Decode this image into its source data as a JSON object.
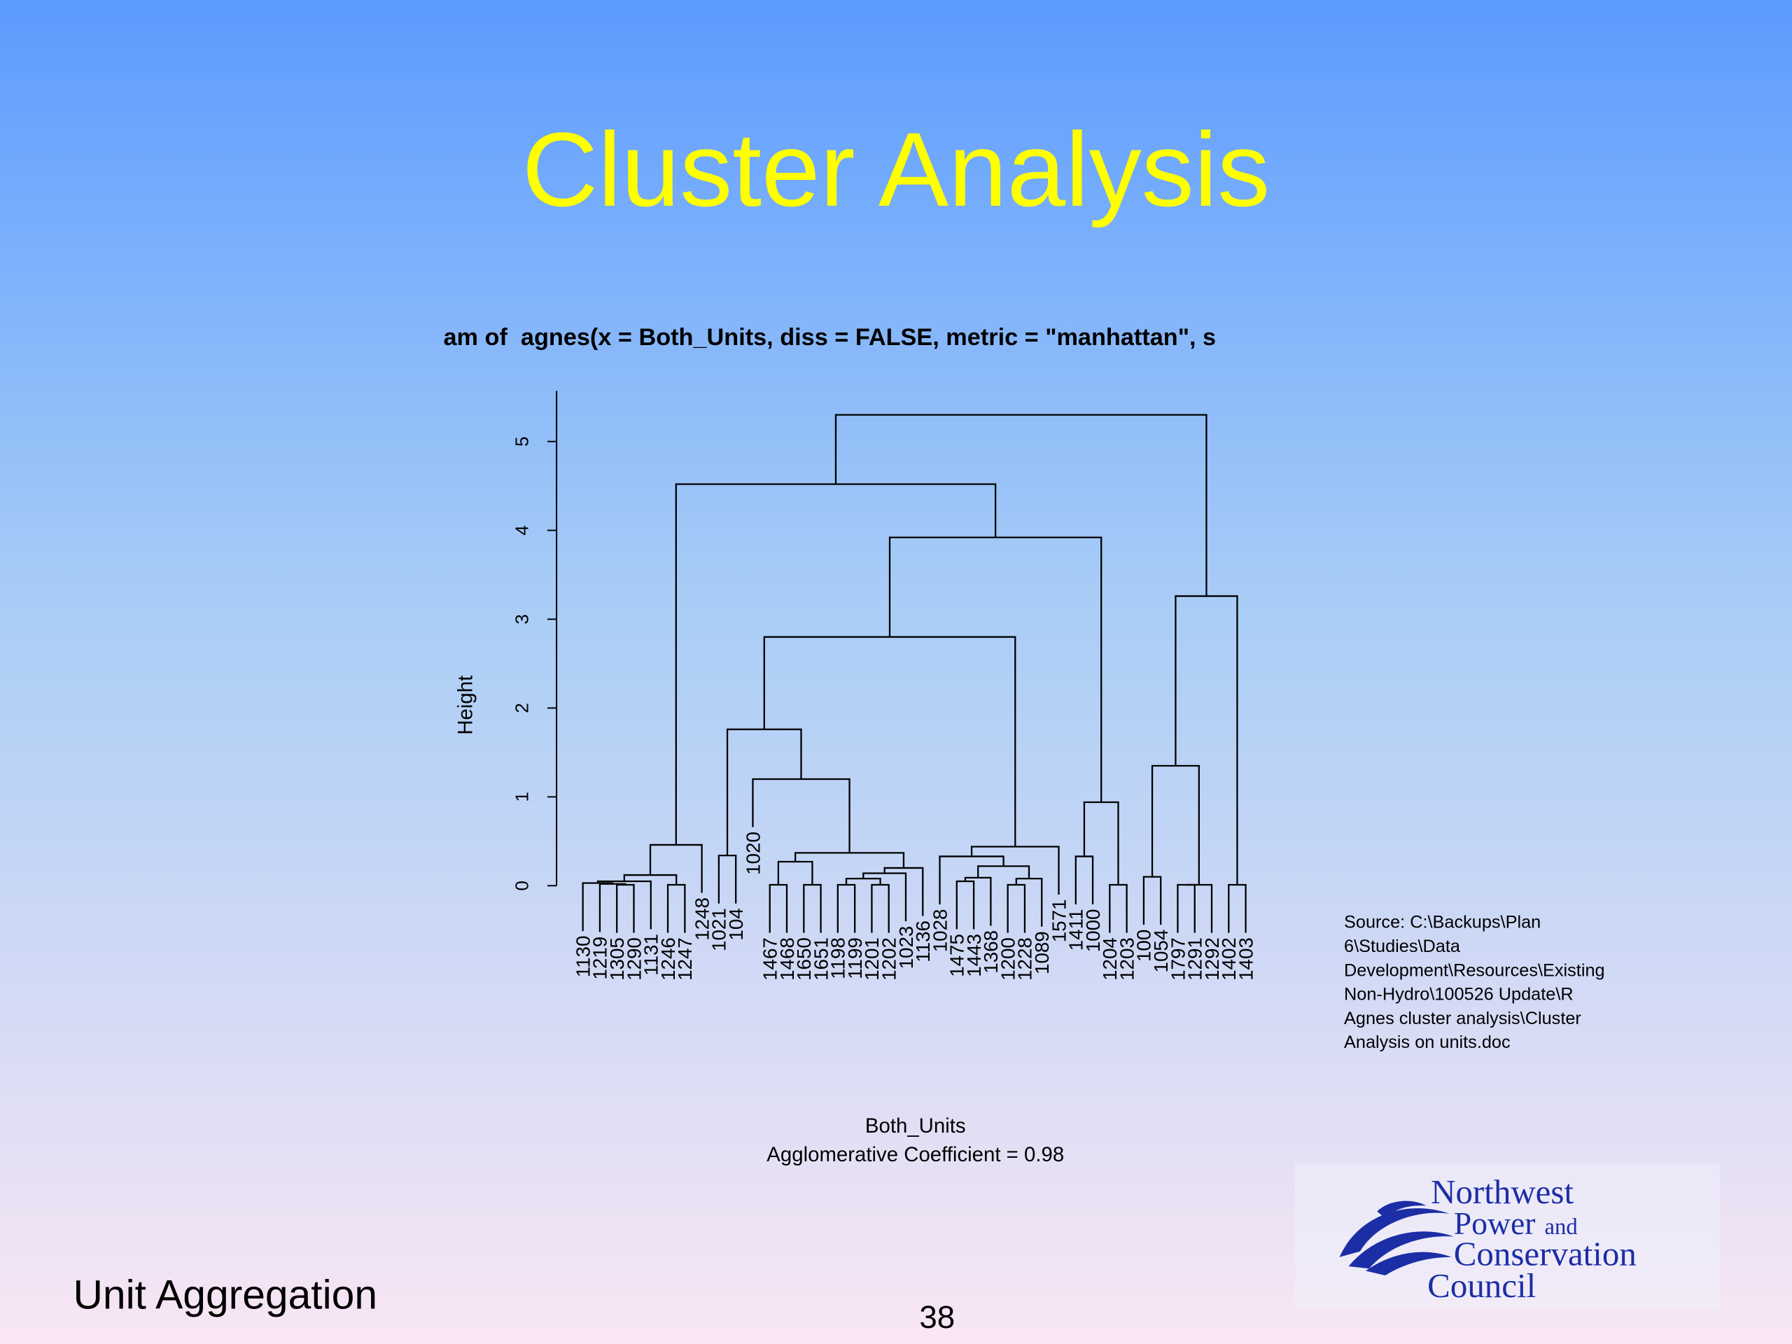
{
  "slide": {
    "title": "Cluster Analysis",
    "source": [
      "Source: C:\\Backups\\Plan",
      "6\\Studies\\Data",
      "Development\\Resources\\Existing",
      "Non-Hydro\\100526 Update\\R",
      "Agnes cluster analysis\\Cluster",
      "Analysis on units.doc"
    ],
    "footer": "Unit Aggregation",
    "page_number": 38,
    "logo": {
      "line1": "Northwest",
      "line2": "Power",
      "line2b": "and",
      "line3": "Conservation",
      "line4": "Council"
    }
  },
  "chart_data": {
    "type": "dendrogram",
    "title": "am of  agnes(x = Both_Units, diss = FALSE, metric = \"manhattan\", s",
    "ylabel": "Height",
    "xlabel": "Both_Units",
    "subtitle": "Agglomerative Coefficient = ",
    "agglomerative_coefficient": 0.98,
    "ylim": [
      0,
      5.57
    ],
    "yticks": [
      0,
      1,
      2,
      3,
      4,
      5
    ],
    "color": "#000000",
    "leaves": [
      "1130",
      "1219",
      "1305",
      "1290",
      "1131",
      "1246",
      "1247",
      "1248",
      "1021",
      "104",
      "1020",
      "1467",
      "1468",
      "1650",
      "1651",
      "1198",
      "1199",
      "1201",
      "1202",
      "1023",
      "1136",
      "1028",
      "1475",
      "1443",
      "1368",
      "1200",
      "1228",
      "1089",
      "1571",
      "1411",
      "1000",
      "1204",
      "1203",
      "100",
      "1054",
      "1797",
      "1291",
      "1292",
      "1402",
      "1403"
    ],
    "merge": [
      [
        -3,
        -4
      ],
      [
        -2,
        1
      ],
      [
        -1,
        2
      ],
      [
        3,
        -5
      ],
      [
        -6,
        -7
      ],
      [
        4,
        5
      ],
      [
        6,
        -8
      ],
      [
        -9,
        -10
      ],
      [
        -12,
        -13
      ],
      [
        -14,
        -15
      ],
      [
        9,
        10
      ],
      [
        -16,
        -17
      ],
      [
        -18,
        -19
      ],
      [
        12,
        13
      ],
      [
        14,
        -20
      ],
      [
        15,
        -21
      ],
      [
        11,
        16
      ],
      [
        -11,
        17
      ],
      [
        8,
        18
      ],
      [
        -23,
        -24
      ],
      [
        20,
        -25
      ],
      [
        -26,
        -27
      ],
      [
        22,
        -28
      ],
      [
        21,
        23
      ],
      [
        -22,
        24
      ],
      [
        25,
        -29
      ],
      [
        19,
        26
      ],
      [
        -30,
        -31
      ],
      [
        -32,
        -33
      ],
      [
        28,
        29
      ],
      [
        27,
        30
      ],
      [
        7,
        31
      ],
      [
        -34,
        -35
      ],
      [
        -36,
        -37
      ],
      [
        34,
        -38
      ],
      [
        33,
        35
      ],
      [
        -39,
        -40
      ],
      [
        36,
        37
      ],
      [
        32,
        38
      ]
    ],
    "height": [
      0.01,
      0.02,
      0.03,
      0.05,
      0.01,
      0.12,
      0.46,
      0.34,
      0.01,
      0.01,
      0.27,
      0.01,
      0.01,
      0.08,
      0.14,
      0.2,
      0.37,
      1.2,
      1.76,
      0.05,
      0.09,
      0.01,
      0.08,
      0.22,
      0.33,
      0.44,
      2.8,
      0.33,
      0.01,
      0.94,
      3.92,
      4.52,
      0.1,
      0.01,
      0.01,
      1.35,
      0.01,
      3.26,
      5.3
    ]
  }
}
